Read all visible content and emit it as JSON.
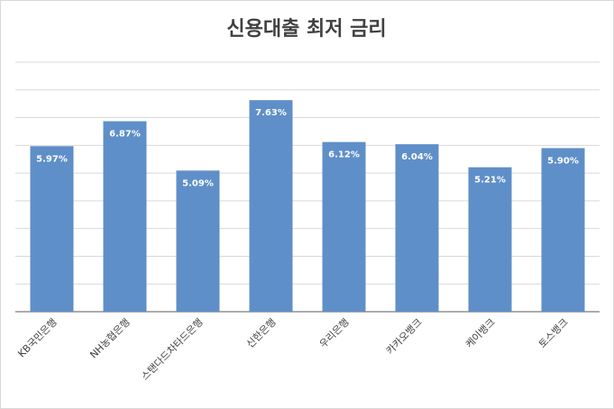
{
  "chart_data": {
    "type": "bar",
    "title": "신용대출 최저 금리",
    "categories": [
      "KB국민은행",
      "NH농협은행",
      "스탠다드차타드은행",
      "신한은행",
      "우리은행",
      "카카오뱅크",
      "케이뱅크",
      "토스뱅크"
    ],
    "values": [
      5.97,
      6.87,
      5.09,
      7.63,
      6.12,
      6.04,
      5.21,
      5.9
    ],
    "value_labels": [
      "5.97%",
      "6.87%",
      "5.09%",
      "7.63%",
      "6.12%",
      "6.04%",
      "5.21%",
      "5.90%"
    ],
    "color": "#5f8fc8",
    "ylim": [
      0,
      9
    ],
    "yticks": [
      0,
      1,
      2,
      3,
      4,
      5,
      6,
      7,
      8,
      9
    ],
    "grid": true
  }
}
